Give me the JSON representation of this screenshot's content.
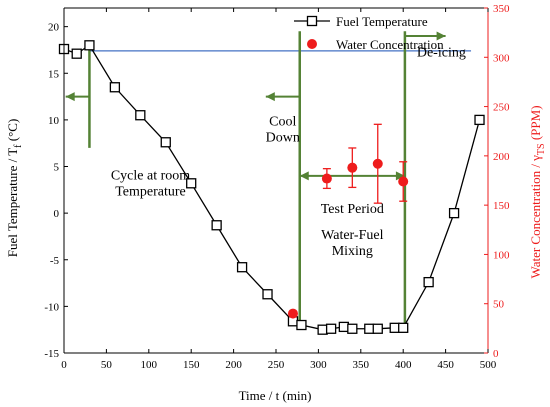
{
  "chart_data": {
    "type": "scatter",
    "xlabel": "Time / t (min)",
    "ylabel_left": {
      "main": "Fuel Temperature / T",
      "sub": "f",
      "tail": " (°C)"
    },
    "ylabel_right": {
      "main": "Water Concentration / γ",
      "sub": "TS",
      "tail": " (PPM)"
    },
    "xlim": [
      0,
      500
    ],
    "ylim_left": [
      -15,
      22
    ],
    "ylim_right": [
      0,
      350
    ],
    "x_ticks": [
      "0",
      "50",
      "100",
      "150",
      "200",
      "250",
      "300",
      "350",
      "400",
      "450",
      "500"
    ],
    "y_left_ticks": [
      "-15",
      "-10",
      "-5",
      "0",
      "5",
      "10",
      "15",
      "20"
    ],
    "y_right_ticks": [
      "0",
      "50",
      "100",
      "150",
      "200",
      "250",
      "300",
      "350"
    ],
    "legend_position": "top-right",
    "series": [
      {
        "name": "Fuel Temperature",
        "axis": "left",
        "color": "#000000",
        "marker": "open-square",
        "x": [
          0,
          15,
          30,
          60,
          90,
          120,
          150,
          180,
          210,
          240,
          270,
          280,
          305,
          315,
          330,
          340,
          360,
          370,
          390,
          400,
          430,
          460,
          490
        ],
        "y": [
          17.6,
          17.1,
          18.0,
          13.5,
          10.5,
          7.6,
          3.2,
          -1.3,
          -5.8,
          -8.7,
          -11.6,
          -12.0,
          -12.5,
          -12.4,
          -12.2,
          -12.4,
          -12.4,
          -12.4,
          -12.3,
          -12.3,
          -7.4,
          0.0,
          10.0
        ]
      },
      {
        "name": "Water Concentration",
        "axis": "right",
        "color": "#ee1c1c",
        "marker": "filled-circle",
        "x": [
          270,
          310,
          340,
          370,
          400
        ],
        "y": [
          40,
          177,
          188,
          192,
          174
        ],
        "err_low": [
          0,
          10,
          20,
          40,
          20
        ],
        "err_high": [
          0,
          10,
          20,
          40,
          20
        ]
      }
    ],
    "reference_line": {
      "axis": "left",
      "y": 17.4,
      "x_from": 30,
      "x_to": 480,
      "color": "#4472c4"
    },
    "vertical_lines": [
      {
        "x": 30,
        "y_from": 7.0,
        "y_to": 18.0,
        "color": "#548235"
      },
      {
        "x": 278,
        "y_from": -12.0,
        "y_to": 19.5,
        "color": "#548235"
      },
      {
        "x": 402,
        "y_from": -12.0,
        "y_to": 19.5,
        "color": "#548235"
      }
    ],
    "arrows": [
      {
        "x_from": 30,
        "x_to": 2,
        "y": 12.5,
        "color": "#548235"
      },
      {
        "x_from": 278,
        "x_to": 238,
        "y": 12.5,
        "color": "#548235"
      },
      {
        "x_from": 402,
        "x_to": 450,
        "y": 19.0,
        "color": "#548235"
      },
      {
        "x_from": 278,
        "x_to": 402,
        "y": 4.0,
        "color": "#548235",
        "double": true
      }
    ],
    "annotations": [
      {
        "lines": [
          "Cycle at room",
          "Temperature"
        ],
        "x": 102,
        "y": 3.6
      },
      {
        "lines": [
          "Cool",
          "Down"
        ],
        "x": 258,
        "y": 9.4
      },
      {
        "lines": [
          "De-icing"
        ],
        "x": 445,
        "y": 16.8
      },
      {
        "lines": [
          "Test Period"
        ],
        "x": 340,
        "y": 0.0
      },
      {
        "lines": [
          "Water-Fuel",
          "Mixing"
        ],
        "x": 340,
        "y": -2.8
      }
    ],
    "colors": {
      "left_axis": "#000000",
      "right_axis": "#ee1c1c",
      "marker_lines": "#548235",
      "reference": "#4472c4"
    }
  }
}
